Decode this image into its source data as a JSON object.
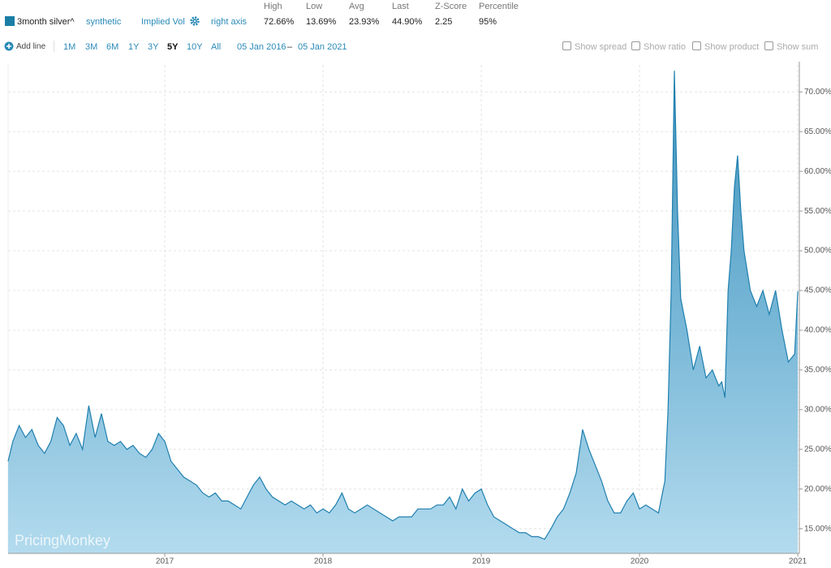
{
  "header": {
    "series_name": "3month silver^",
    "model": "synthetic",
    "metric": "Implied Vol",
    "axis": "right axis",
    "stats": [
      {
        "label": "High",
        "value": "72.66%"
      },
      {
        "label": "Low",
        "value": "13.69%"
      },
      {
        "label": "Avg",
        "value": "23.93%"
      },
      {
        "label": "Last",
        "value": "44.90%"
      },
      {
        "label": "Z-Score",
        "value": "2.25"
      },
      {
        "label": "Percentile",
        "value": "95%"
      }
    ]
  },
  "toolbar": {
    "add_line": "Add line",
    "ranges": [
      "1M",
      "3M",
      "6M",
      "1Y",
      "3Y",
      "5Y",
      "10Y",
      "All"
    ],
    "active_range": "5Y",
    "date_from": "05 Jan 2016",
    "date_sep": "–",
    "date_to": "05 Jan 2021",
    "options": [
      "Show spread",
      "Show ratio",
      "Show product",
      "Show sum"
    ]
  },
  "chart_data": {
    "type": "area",
    "color": "#1f7fae",
    "x": [
      2016.01,
      2016.04,
      2016.08,
      2016.12,
      2016.16,
      2016.2,
      2016.24,
      2016.28,
      2016.32,
      2016.36,
      2016.4,
      2016.44,
      2016.48,
      2016.52,
      2016.56,
      2016.6,
      2016.64,
      2016.68,
      2016.72,
      2016.76,
      2016.8,
      2016.84,
      2016.88,
      2016.92,
      2016.96,
      2017.0,
      2017.04,
      2017.08,
      2017.12,
      2017.16,
      2017.2,
      2017.24,
      2017.28,
      2017.32,
      2017.36,
      2017.4,
      2017.44,
      2017.48,
      2017.52,
      2017.56,
      2017.6,
      2017.64,
      2017.68,
      2017.72,
      2017.76,
      2017.8,
      2017.84,
      2017.88,
      2017.92,
      2017.96,
      2018.0,
      2018.04,
      2018.08,
      2018.12,
      2018.16,
      2018.2,
      2018.24,
      2018.28,
      2018.32,
      2018.36,
      2018.4,
      2018.44,
      2018.48,
      2018.52,
      2018.56,
      2018.6,
      2018.64,
      2018.68,
      2018.72,
      2018.76,
      2018.8,
      2018.84,
      2018.88,
      2018.92,
      2018.96,
      2019.0,
      2019.04,
      2019.08,
      2019.12,
      2019.16,
      2019.2,
      2019.24,
      2019.28,
      2019.32,
      2019.36,
      2019.4,
      2019.44,
      2019.48,
      2019.52,
      2019.56,
      2019.6,
      2019.64,
      2019.68,
      2019.72,
      2019.76,
      2019.8,
      2019.84,
      2019.88,
      2019.92,
      2019.96,
      2020.0,
      2020.04,
      2020.08,
      2020.12,
      2020.16,
      2020.18,
      2020.2,
      2020.22,
      2020.24,
      2020.26,
      2020.3,
      2020.34,
      2020.38,
      2020.42,
      2020.46,
      2020.5,
      2020.52,
      2020.54,
      2020.56,
      2020.58,
      2020.6,
      2020.62,
      2020.64,
      2020.66,
      2020.7,
      2020.74,
      2020.78,
      2020.82,
      2020.86,
      2020.9,
      2020.94,
      2020.98,
      2021.0
    ],
    "values": [
      23.5,
      26,
      28,
      26.5,
      27.5,
      25.5,
      24.5,
      26,
      29,
      28,
      25.5,
      27,
      25,
      30.5,
      26.5,
      29.5,
      26,
      25.5,
      26,
      25,
      25.5,
      24.5,
      24,
      25,
      27,
      26,
      23.5,
      22.5,
      21.5,
      21,
      20.5,
      19.5,
      19,
      19.5,
      18.5,
      18.5,
      18,
      17.5,
      19,
      20.5,
      21.5,
      20,
      19,
      18.5,
      18,
      18.5,
      18,
      17.5,
      18,
      17,
      17.5,
      17,
      18,
      19.5,
      17.5,
      17,
      17.5,
      18,
      17.5,
      17,
      16.5,
      16,
      16.5,
      16.5,
      16.5,
      17.5,
      17.5,
      17.5,
      18,
      18,
      19,
      17.5,
      20,
      18.5,
      19.5,
      20,
      18,
      16.5,
      16,
      15.5,
      15,
      14.5,
      14.5,
      14,
      14,
      13.69,
      15,
      16.5,
      17.5,
      19.5,
      22,
      27.5,
      25,
      23,
      21,
      18.5,
      17,
      17,
      18.5,
      19.5,
      17.5,
      18,
      17.5,
      17,
      21,
      30,
      45,
      72.66,
      55,
      44,
      40,
      35,
      38,
      34,
      35,
      33,
      33.5,
      31.5,
      45,
      50,
      58,
      62,
      55,
      50,
      45,
      43,
      45,
      42,
      45,
      40,
      36,
      37,
      44.9
    ],
    "xlim": [
      2016.01,
      2021.01
    ],
    "xticks": [
      2017,
      2018,
      2019,
      2020,
      2021
    ],
    "ylim": [
      11.9,
      73.4
    ],
    "yticks": [
      {
        "value": 15,
        "label": "15.00%"
      },
      {
        "value": 20,
        "label": "20.00%"
      },
      {
        "value": 25,
        "label": "25.00%"
      },
      {
        "value": 30,
        "label": "30.00%"
      },
      {
        "value": 35,
        "label": "35.00%"
      },
      {
        "value": 40,
        "label": "40.00%"
      },
      {
        "value": 45,
        "label": "45.00%"
      },
      {
        "value": 50,
        "label": "50.00%"
      },
      {
        "value": 55,
        "label": "55.00%"
      },
      {
        "value": 60,
        "label": "60.00%"
      },
      {
        "value": 65,
        "label": "65.00%"
      },
      {
        "value": 70,
        "label": "70.00%"
      }
    ],
    "grid": true
  },
  "watermark": "PricingMonkey"
}
